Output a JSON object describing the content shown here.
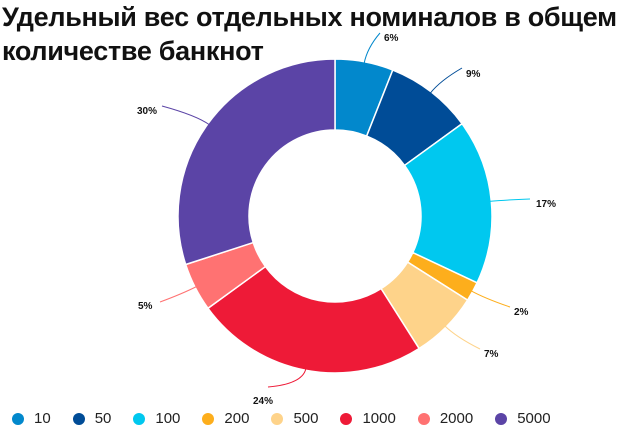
{
  "title": "Удельный вес отдельных номиналов в общем количестве банкнот",
  "chart_data": {
    "type": "pie",
    "variant": "donut",
    "title": "Удельный вес отдельных номиналов в общем количестве банкнот",
    "categories": [
      "10",
      "50",
      "100",
      "200",
      "500",
      "1000",
      "2000",
      "5000"
    ],
    "values": [
      6,
      9,
      17,
      2,
      7,
      24,
      5,
      30
    ],
    "value_labels": [
      "6%",
      "9%",
      "17%",
      "2%",
      "7%",
      "24%",
      "5%",
      "30%"
    ],
    "colors": [
      "#0288cc",
      "#004c97",
      "#00c8ef",
      "#fdae1c",
      "#fed38a",
      "#ee1a37",
      "#ff7272",
      "#5b44a6"
    ],
    "start_angle_deg": 0,
    "direction": "clockwise",
    "legend_position": "bottom"
  },
  "legend": {
    "items": [
      {
        "label": "10",
        "color": "#0288cc"
      },
      {
        "label": "50",
        "color": "#004c97"
      },
      {
        "label": "100",
        "color": "#00c8ef"
      },
      {
        "label": "200",
        "color": "#fdae1c"
      },
      {
        "label": "500",
        "color": "#fed38a"
      },
      {
        "label": "1000",
        "color": "#ee1a37"
      },
      {
        "label": "2000",
        "color": "#ff7272"
      },
      {
        "label": "5000",
        "color": "#5b44a6"
      }
    ]
  }
}
